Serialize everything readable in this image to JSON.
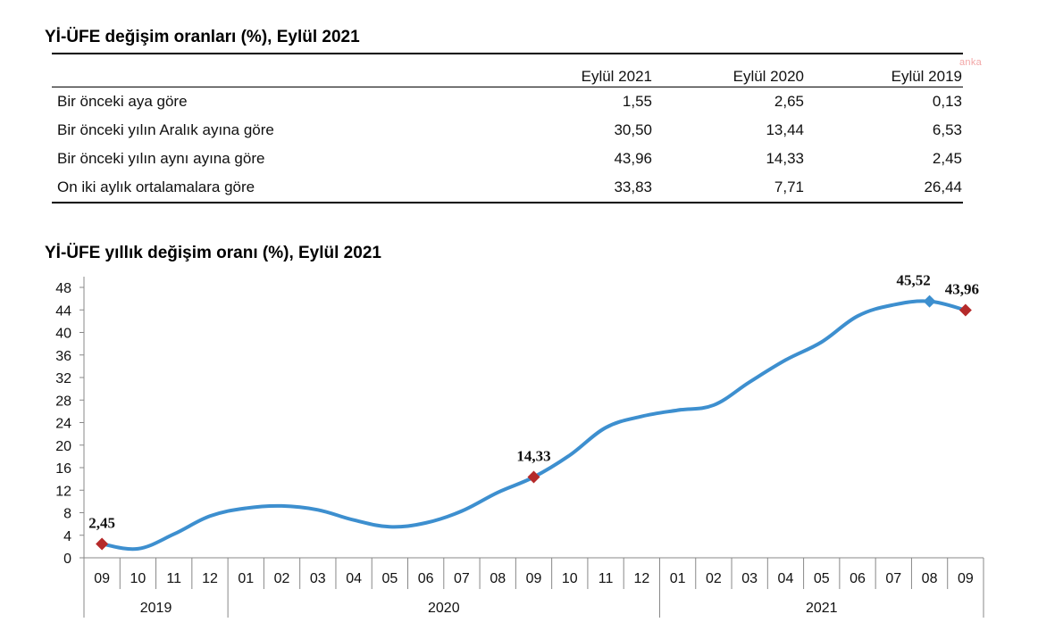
{
  "table": {
    "title": "Yİ-ÜFE değişim oranları (%), Eylül 2021",
    "columns": [
      "Eylül 2021",
      "Eylül 2020",
      "Eylül 2019"
    ],
    "rows": [
      {
        "label": "Bir önceki aya göre",
        "values": [
          "1,55",
          "2,65",
          "0,13"
        ]
      },
      {
        "label": "Bir önceki yılın Aralık ayına göre",
        "values": [
          "30,50",
          "13,44",
          "6,53"
        ]
      },
      {
        "label": "Bir önceki yılın aynı ayına göre",
        "values": [
          "43,96",
          "14,33",
          "2,45"
        ]
      },
      {
        "label": "On iki aylık ortalamalara göre",
        "values": [
          "33,83",
          "7,71",
          "26,44"
        ]
      }
    ]
  },
  "watermark": "anka",
  "chart_data": {
    "type": "line",
    "title": "Yİ-ÜFE yıllık değişim oranı (%), Eylül 2021",
    "xlabel": "",
    "ylabel": "",
    "ylim": [
      0,
      48
    ],
    "yticks": [
      "0",
      "4",
      "8",
      "12",
      "16",
      "20",
      "24",
      "28",
      "32",
      "36",
      "40",
      "44",
      "48"
    ],
    "categories": [
      "09",
      "10",
      "11",
      "12",
      "01",
      "02",
      "03",
      "04",
      "05",
      "06",
      "07",
      "08",
      "09",
      "10",
      "11",
      "12",
      "01",
      "02",
      "03",
      "04",
      "05",
      "06",
      "07",
      "08",
      "09"
    ],
    "years": [
      {
        "label": "2019",
        "count": 4
      },
      {
        "label": "2020",
        "count": 12
      },
      {
        "label": "2021",
        "count": 9
      }
    ],
    "series": [
      {
        "values": [
          2.45,
          1.6,
          4.2,
          7.4,
          8.8,
          9.2,
          8.5,
          6.7,
          5.5,
          6.2,
          8.3,
          11.6,
          14.33,
          18.2,
          23.1,
          25.1,
          26.2,
          27.1,
          31.2,
          35.1,
          38.3,
          42.9,
          44.9,
          45.52,
          43.96
        ],
        "color": "#3d8fcf"
      }
    ],
    "point_labels": [
      {
        "index": 0,
        "text": "2,45",
        "color": "#b52a2a"
      },
      {
        "index": 12,
        "text": "14,33",
        "color": "#b52a2a"
      },
      {
        "index": 23,
        "text": "45,52",
        "color": "#3d8fcf"
      },
      {
        "index": 24,
        "text": "43,96",
        "color": "#b52a2a"
      }
    ],
    "grid": false
  }
}
